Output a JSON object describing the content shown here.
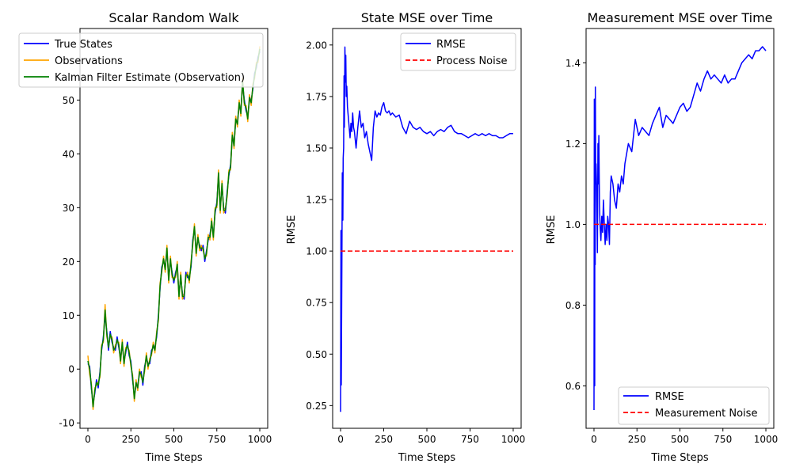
{
  "chart_data": [
    {
      "type": "line",
      "title": "Scalar Random Walk",
      "xlabel": "Time Steps",
      "ylabel": "",
      "xlim": [
        -46,
        1046
      ],
      "ylim": [
        -11,
        63.3
      ],
      "xticks": [
        0,
        250,
        500,
        750,
        1000
      ],
      "yticks": [
        -10,
        0,
        10,
        20,
        30,
        40,
        50
      ],
      "grid": false,
      "legend": "upper left",
      "series": [
        {
          "name": "True States",
          "color": "#0000ff",
          "x": [
            0,
            10,
            20,
            30,
            40,
            50,
            60,
            70,
            80,
            90,
            100,
            110,
            120,
            130,
            140,
            150,
            160,
            170,
            180,
            190,
            200,
            210,
            220,
            230,
            240,
            250,
            260,
            270,
            280,
            290,
            300,
            310,
            320,
            330,
            340,
            350,
            360,
            370,
            380,
            390,
            400,
            410,
            420,
            430,
            440,
            450,
            460,
            470,
            480,
            490,
            500,
            510,
            520,
            530,
            540,
            550,
            560,
            570,
            580,
            590,
            600,
            610,
            620,
            630,
            640,
            650,
            660,
            670,
            680,
            690,
            700,
            710,
            720,
            730,
            740,
            750,
            760,
            770,
            780,
            790,
            800,
            810,
            820,
            830,
            840,
            850,
            860,
            870,
            880,
            890,
            900,
            910,
            920,
            930,
            940,
            950,
            960,
            970,
            980,
            990,
            1000
          ],
          "y": [
            1,
            0.5,
            -3.5,
            -6.5,
            -4.5,
            -2,
            -3.5,
            -0.5,
            3.5,
            6,
            10,
            7,
            3.5,
            7,
            5,
            4,
            3.5,
            6,
            4,
            2,
            4.5,
            1.5,
            3,
            5,
            2.5,
            1.5,
            -2,
            -5,
            -3,
            -3,
            -1,
            -0.5,
            -3,
            0.5,
            2,
            1,
            1,
            3.5,
            4,
            4,
            6,
            10,
            15,
            19,
            20,
            19,
            22,
            17,
            20,
            18,
            16,
            18,
            19,
            14,
            17,
            14,
            13,
            18,
            17,
            17,
            19,
            24,
            26,
            22,
            24,
            23,
            22,
            23,
            20,
            22,
            24,
            25,
            27,
            25,
            29,
            31,
            36,
            30,
            34,
            30,
            29,
            33,
            36,
            38,
            43,
            42,
            46,
            46,
            49,
            48,
            53,
            50,
            48,
            47,
            50,
            50,
            52,
            55,
            56,
            58,
            59
          ]
        },
        {
          "name": "Observations",
          "color": "#ffa500",
          "x": [
            0,
            10,
            20,
            30,
            40,
            50,
            60,
            70,
            80,
            90,
            100,
            110,
            120,
            130,
            140,
            150,
            160,
            170,
            180,
            190,
            200,
            210,
            220,
            230,
            240,
            250,
            260,
            270,
            280,
            290,
            300,
            310,
            320,
            330,
            340,
            350,
            360,
            370,
            380,
            390,
            400,
            410,
            420,
            430,
            440,
            450,
            460,
            470,
            480,
            490,
            500,
            510,
            520,
            530,
            540,
            550,
            560,
            570,
            580,
            590,
            600,
            610,
            620,
            630,
            640,
            650,
            660,
            670,
            680,
            690,
            700,
            710,
            720,
            730,
            740,
            750,
            760,
            770,
            780,
            790,
            800,
            810,
            820,
            830,
            840,
            850,
            860,
            870,
            880,
            890,
            900,
            910,
            920,
            930,
            940,
            950,
            960,
            970,
            980,
            990,
            1000
          ],
          "y": [
            2.5,
            -1,
            -2.5,
            -7.5,
            -3.5,
            -3,
            -2.5,
            -1.5,
            4.5,
            5,
            12,
            6,
            4.5,
            6,
            6,
            3,
            4.5,
            5,
            5,
            1,
            5.5,
            0.5,
            4,
            4,
            3.5,
            0.5,
            -1,
            -6,
            -2,
            -4,
            0,
            -1.5,
            -2,
            -0.5,
            3,
            0,
            2,
            2.5,
            5,
            3,
            7,
            9,
            16,
            18,
            21,
            18,
            23,
            16,
            21,
            17,
            17,
            17,
            20,
            13,
            18,
            13,
            14,
            17,
            18,
            16,
            20,
            23,
            27,
            21,
            25,
            22,
            23,
            22,
            21,
            21,
            25,
            24,
            28,
            24,
            30,
            30,
            37,
            29,
            35,
            29,
            30,
            32,
            37,
            37,
            44,
            41,
            47,
            45,
            50,
            47,
            54,
            49,
            49,
            46,
            51,
            49,
            53,
            54,
            57,
            57,
            60
          ]
        },
        {
          "name": "Kalman Filter Estimate (Observation)",
          "color": "#008000",
          "x": [
            0,
            10,
            20,
            30,
            40,
            50,
            60,
            70,
            80,
            90,
            100,
            110,
            120,
            130,
            140,
            150,
            160,
            170,
            180,
            190,
            200,
            210,
            220,
            230,
            240,
            250,
            260,
            270,
            280,
            290,
            300,
            310,
            320,
            330,
            340,
            350,
            360,
            370,
            380,
            390,
            400,
            410,
            420,
            430,
            440,
            450,
            460,
            470,
            480,
            490,
            500,
            510,
            520,
            530,
            540,
            550,
            560,
            570,
            580,
            590,
            600,
            610,
            620,
            630,
            640,
            650,
            660,
            670,
            680,
            690,
            700,
            710,
            720,
            730,
            740,
            750,
            760,
            770,
            780,
            790,
            800,
            810,
            820,
            830,
            840,
            850,
            860,
            870,
            880,
            890,
            900,
            910,
            920,
            930,
            940,
            950,
            960,
            970,
            980,
            990,
            1000
          ],
          "y": [
            1.5,
            0,
            -3,
            -7,
            -4,
            -2.5,
            -3,
            -1,
            4,
            5.5,
            11,
            6.5,
            4,
            6.5,
            5.5,
            3.5,
            4,
            5.5,
            4.5,
            1.5,
            5,
            1,
            3.5,
            4.5,
            3,
            1,
            -1.5,
            -5.5,
            -2.5,
            -3.5,
            -0.5,
            -1,
            -2.5,
            0,
            2.5,
            0.5,
            1.5,
            3,
            4.5,
            3.5,
            6.5,
            9.5,
            15.5,
            18.5,
            20.5,
            18.5,
            22.5,
            16.5,
            20.5,
            17.5,
            16.5,
            17.5,
            19.5,
            13.5,
            17.5,
            13.5,
            13.5,
            17.5,
            17.5,
            16.5,
            19.5,
            23.5,
            26.5,
            21.5,
            24.5,
            22.5,
            22.5,
            22.5,
            20.5,
            21.5,
            24.5,
            24.5,
            27.5,
            24.5,
            29.5,
            30.5,
            36.5,
            29.5,
            34.5,
            29.5,
            29.5,
            32.5,
            36.5,
            37.5,
            43.5,
            41.5,
            46.5,
            45.5,
            49.5,
            47.5,
            53.5,
            49.5,
            48.5,
            46.5,
            50.5,
            49.5,
            52.5,
            54.5,
            56.5,
            57.5,
            59.5
          ]
        }
      ]
    },
    {
      "type": "line",
      "title": "State MSE over Time",
      "xlabel": "Time Steps",
      "ylabel": "RMSE",
      "xlim": [
        -46,
        1046
      ],
      "ylim": [
        0.14,
        2.08
      ],
      "xticks": [
        0,
        250,
        500,
        750,
        1000
      ],
      "yticks": [
        0.25,
        0.5,
        0.75,
        1.0,
        1.25,
        1.5,
        1.75,
        2.0
      ],
      "ytick_labels": [
        "0.25",
        "0.50",
        "0.75",
        "1.00",
        "1.25",
        "1.50",
        "1.75",
        "2.00"
      ],
      "grid": false,
      "legend": "upper right",
      "series": [
        {
          "name": "RMSE",
          "color": "#0000ff",
          "x": [
            0,
            2,
            4,
            5,
            8,
            10,
            13,
            15,
            18,
            20,
            22,
            25,
            28,
            30,
            33,
            36,
            40,
            45,
            50,
            55,
            60,
            65,
            70,
            75,
            80,
            90,
            100,
            110,
            120,
            130,
            140,
            150,
            160,
            170,
            180,
            190,
            200,
            210,
            220,
            230,
            240,
            250,
            260,
            270,
            280,
            290,
            300,
            320,
            340,
            360,
            380,
            400,
            420,
            440,
            460,
            480,
            500,
            520,
            540,
            560,
            580,
            600,
            620,
            640,
            660,
            680,
            700,
            720,
            740,
            760,
            780,
            800,
            820,
            840,
            860,
            880,
            900,
            920,
            940,
            960,
            980,
            1000
          ],
          "y": [
            0.22,
            1.1,
            0.35,
            0.5,
            1.05,
            1.38,
            1.15,
            1.45,
            1.5,
            1.85,
            1.6,
            1.99,
            1.82,
            1.95,
            1.75,
            1.8,
            1.7,
            1.65,
            1.6,
            1.55,
            1.62,
            1.58,
            1.67,
            1.6,
            1.58,
            1.5,
            1.6,
            1.68,
            1.6,
            1.62,
            1.55,
            1.58,
            1.52,
            1.48,
            1.44,
            1.6,
            1.68,
            1.65,
            1.67,
            1.66,
            1.7,
            1.72,
            1.68,
            1.67,
            1.68,
            1.66,
            1.67,
            1.65,
            1.66,
            1.6,
            1.57,
            1.63,
            1.6,
            1.59,
            1.6,
            1.58,
            1.57,
            1.58,
            1.56,
            1.58,
            1.59,
            1.58,
            1.6,
            1.61,
            1.58,
            1.57,
            1.57,
            1.56,
            1.55,
            1.56,
            1.57,
            1.56,
            1.57,
            1.56,
            1.57,
            1.56,
            1.56,
            1.55,
            1.55,
            1.56,
            1.57,
            1.57
          ]
        },
        {
          "name": "Process Noise",
          "color": "#ff0000",
          "dashed": true,
          "x": [
            0,
            1000
          ],
          "y": [
            1.0,
            1.0
          ]
        }
      ]
    },
    {
      "type": "line",
      "title": "Measurement MSE over Time",
      "xlabel": "Time Steps",
      "ylabel": "RMSE",
      "xlim": [
        -46,
        1046
      ],
      "ylim": [
        0.495,
        1.485
      ],
      "xticks": [
        0,
        250,
        500,
        750,
        1000
      ],
      "yticks": [
        0.6,
        0.8,
        1.0,
        1.2,
        1.4
      ],
      "ytick_labels": [
        "0.6",
        "0.8",
        "1.0",
        "1.2",
        "1.4"
      ],
      "grid": false,
      "legend": "lower right",
      "series": [
        {
          "name": "RMSE",
          "color": "#0000ff",
          "x": [
            0,
            2,
            3,
            4,
            5,
            7,
            8,
            10,
            12,
            15,
            18,
            20,
            23,
            25,
            28,
            32,
            35,
            40,
            45,
            50,
            55,
            60,
            65,
            70,
            75,
            80,
            85,
            90,
            95,
            100,
            110,
            120,
            130,
            140,
            150,
            160,
            170,
            180,
            200,
            220,
            240,
            260,
            280,
            300,
            320,
            340,
            360,
            380,
            400,
            420,
            440,
            460,
            480,
            500,
            520,
            540,
            560,
            580,
            600,
            620,
            640,
            660,
            680,
            700,
            720,
            740,
            760,
            780,
            800,
            820,
            840,
            860,
            880,
            900,
            920,
            940,
            960,
            980,
            1000
          ],
          "y": [
            0.54,
            1.31,
            0.7,
            0.6,
            1.3,
            0.9,
            1.34,
            1.1,
            1.15,
            1.1,
            1.0,
            0.93,
            1.2,
            1.1,
            1.22,
            1.05,
            1.0,
            0.96,
            1.02,
            0.98,
            1.06,
            1.0,
            0.95,
            1.0,
            0.96,
            1.02,
            1.0,
            0.95,
            1.08,
            1.12,
            1.1,
            1.06,
            1.04,
            1.1,
            1.08,
            1.12,
            1.1,
            1.15,
            1.2,
            1.18,
            1.26,
            1.22,
            1.24,
            1.23,
            1.22,
            1.25,
            1.27,
            1.29,
            1.24,
            1.27,
            1.26,
            1.25,
            1.27,
            1.29,
            1.3,
            1.28,
            1.29,
            1.32,
            1.35,
            1.33,
            1.36,
            1.38,
            1.36,
            1.37,
            1.36,
            1.35,
            1.37,
            1.35,
            1.36,
            1.36,
            1.38,
            1.4,
            1.41,
            1.42,
            1.41,
            1.43,
            1.43,
            1.44,
            1.43
          ]
        },
        {
          "name": "Measurement Noise",
          "color": "#ff0000",
          "dashed": true,
          "x": [
            0,
            1000
          ],
          "y": [
            1.0,
            1.0
          ]
        }
      ]
    }
  ]
}
